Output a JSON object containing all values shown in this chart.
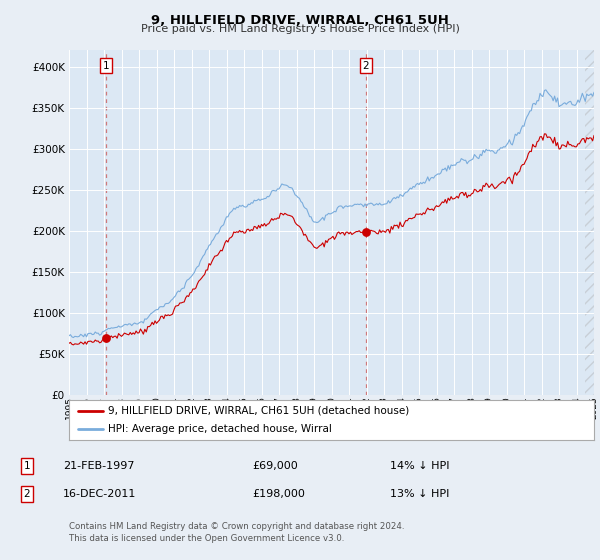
{
  "title": "9, HILLFIELD DRIVE, WIRRAL, CH61 5UH",
  "subtitle": "Price paid vs. HM Land Registry's House Price Index (HPI)",
  "property_label": "9, HILLFIELD DRIVE, WIRRAL, CH61 5UH (detached house)",
  "hpi_label": "HPI: Average price, detached house, Wirral",
  "sale1_date": "21-FEB-1997",
  "sale1_price": 69000,
  "sale2_date": "16-DEC-2011",
  "sale2_price": 198000,
  "sale1_pct": "14% ↓ HPI",
  "sale2_pct": "13% ↓ HPI",
  "footer": "Contains HM Land Registry data © Crown copyright and database right 2024.\nThis data is licensed under the Open Government Licence v3.0.",
  "bg_color": "#e8eef5",
  "plot_bg": "#e8eef5",
  "inner_plot_bg": "#dce8f4",
  "line_color_property": "#cc0000",
  "line_color_hpi": "#7aacdc",
  "ylim": [
    0,
    420000
  ],
  "yticks": [
    0,
    50000,
    100000,
    150000,
    200000,
    250000,
    300000,
    350000,
    400000
  ],
  "sale1_year": 1997.12,
  "sale2_year": 2011.96
}
